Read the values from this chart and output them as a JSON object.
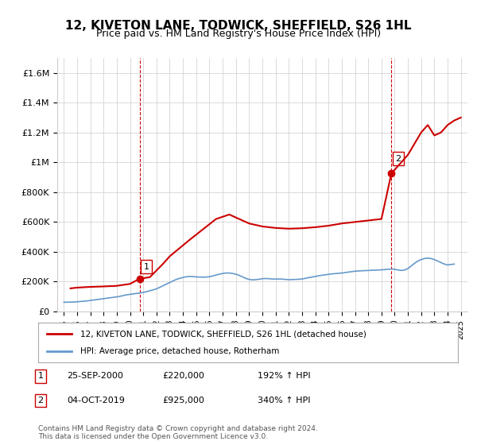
{
  "title": "12, KIVETON LANE, TODWICK, SHEFFIELD, S26 1HL",
  "subtitle": "Price paid vs. HM Land Registry's House Price Index (HPI)",
  "title_fontsize": 11,
  "subtitle_fontsize": 9,
  "bg_color": "#ffffff",
  "plot_bg_color": "#ffffff",
  "grid_color": "#cccccc",
  "house_color": "#cc0000",
  "hpi_color": "#6699cc",
  "marker_color": "#cc0000",
  "dashed_color": "#cc0000",
  "ylim": [
    0,
    1700000
  ],
  "yticks": [
    0,
    200000,
    400000,
    600000,
    800000,
    1000000,
    1200000,
    1400000,
    1600000
  ],
  "ytick_labels": [
    "£0",
    "£200K",
    "£400K",
    "£600K",
    "£800K",
    "£1M",
    "£1.2M",
    "£1.4M",
    "£1.6M"
  ],
  "xmin": 1994.5,
  "xmax": 2025.5,
  "xticks": [
    1995,
    1996,
    1997,
    1998,
    1999,
    2000,
    2001,
    2002,
    2003,
    2004,
    2005,
    2006,
    2007,
    2008,
    2009,
    2010,
    2011,
    2012,
    2013,
    2014,
    2015,
    2016,
    2017,
    2018,
    2019,
    2020,
    2021,
    2022,
    2023,
    2024,
    2025
  ],
  "sale1_x": 2000.73,
  "sale1_y": 220000,
  "sale1_label": "1",
  "sale1_date": "25-SEP-2000",
  "sale1_price": "£220,000",
  "sale1_hpi": "192% ↑ HPI",
  "sale2_x": 2019.75,
  "sale2_y": 925000,
  "sale2_label": "2",
  "sale2_date": "04-OCT-2019",
  "sale2_price": "£925,000",
  "sale2_hpi": "340% ↑ HPI",
  "legend_line1": "12, KIVETON LANE, TODWICK, SHEFFIELD, S26 1HL (detached house)",
  "legend_line2": "HPI: Average price, detached house, Rotherham",
  "footer": "Contains HM Land Registry data © Crown copyright and database right 2024.\nThis data is licensed under the Open Government Licence v3.0.",
  "hpi_data_x": [
    1995.0,
    1995.25,
    1995.5,
    1995.75,
    1996.0,
    1996.25,
    1996.5,
    1996.75,
    1997.0,
    1997.25,
    1997.5,
    1997.75,
    1998.0,
    1998.25,
    1998.5,
    1998.75,
    1999.0,
    1999.25,
    1999.5,
    1999.75,
    2000.0,
    2000.25,
    2000.5,
    2000.75,
    2001.0,
    2001.25,
    2001.5,
    2001.75,
    2002.0,
    2002.25,
    2002.5,
    2002.75,
    2003.0,
    2003.25,
    2003.5,
    2003.75,
    2004.0,
    2004.25,
    2004.5,
    2004.75,
    2005.0,
    2005.25,
    2005.5,
    2005.75,
    2006.0,
    2006.25,
    2006.5,
    2006.75,
    2007.0,
    2007.25,
    2007.5,
    2007.75,
    2008.0,
    2008.25,
    2008.5,
    2008.75,
    2009.0,
    2009.25,
    2009.5,
    2009.75,
    2010.0,
    2010.25,
    2010.5,
    2010.75,
    2011.0,
    2011.25,
    2011.5,
    2011.75,
    2012.0,
    2012.25,
    2012.5,
    2012.75,
    2013.0,
    2013.25,
    2013.5,
    2013.75,
    2014.0,
    2014.25,
    2014.5,
    2014.75,
    2015.0,
    2015.25,
    2015.5,
    2015.75,
    2016.0,
    2016.25,
    2016.5,
    2016.75,
    2017.0,
    2017.25,
    2017.5,
    2017.75,
    2018.0,
    2018.25,
    2018.5,
    2018.75,
    2019.0,
    2019.25,
    2019.5,
    2019.75,
    2020.0,
    2020.25,
    2020.5,
    2020.75,
    2021.0,
    2021.25,
    2021.5,
    2021.75,
    2022.0,
    2022.25,
    2022.5,
    2022.75,
    2023.0,
    2023.25,
    2023.5,
    2023.75,
    2024.0,
    2024.25,
    2024.5
  ],
  "hpi_data_y": [
    62000,
    62500,
    63000,
    63500,
    65000,
    67000,
    69000,
    71000,
    74000,
    77000,
    80000,
    83000,
    86000,
    89000,
    92000,
    95000,
    98000,
    102000,
    107000,
    112000,
    115000,
    118000,
    121000,
    124000,
    128000,
    133000,
    139000,
    145000,
    152000,
    162000,
    173000,
    184000,
    194000,
    205000,
    215000,
    222000,
    228000,
    233000,
    235000,
    234000,
    232000,
    231000,
    230000,
    231000,
    233000,
    238000,
    244000,
    250000,
    255000,
    258000,
    258000,
    255000,
    250000,
    242000,
    232000,
    222000,
    215000,
    212000,
    213000,
    216000,
    220000,
    221000,
    220000,
    218000,
    217000,
    218000,
    217000,
    215000,
    213000,
    214000,
    215000,
    216000,
    218000,
    222000,
    227000,
    231000,
    235000,
    239000,
    243000,
    246000,
    249000,
    252000,
    254000,
    256000,
    258000,
    261000,
    264000,
    267000,
    270000,
    272000,
    273000,
    274000,
    275000,
    276000,
    277000,
    278000,
    279000,
    281000,
    283000,
    285000,
    283000,
    278000,
    275000,
    278000,
    288000,
    305000,
    323000,
    338000,
    348000,
    355000,
    358000,
    355000,
    348000,
    338000,
    328000,
    318000,
    312000,
    315000,
    318000
  ],
  "house_data_x": [
    1995.5,
    1996.0,
    1997.0,
    1998.0,
    1999.0,
    2000.0,
    2000.73,
    2001.5,
    2002.5,
    2003.0,
    2004.5,
    2005.5,
    2006.5,
    2007.5,
    2008.0,
    2009.0,
    2010.0,
    2011.0,
    2012.0,
    2013.0,
    2014.0,
    2015.0,
    2016.0,
    2017.0,
    2018.0,
    2019.0,
    2019.75,
    2020.5,
    2021.0,
    2022.0,
    2022.5,
    2023.0,
    2023.5,
    2024.0,
    2024.5,
    2025.0
  ],
  "house_data_y": [
    155000,
    160000,
    165000,
    168000,
    172000,
    185000,
    220000,
    230000,
    320000,
    370000,
    480000,
    550000,
    620000,
    650000,
    630000,
    590000,
    570000,
    560000,
    555000,
    558000,
    565000,
    575000,
    590000,
    600000,
    610000,
    620000,
    925000,
    1000000,
    1050000,
    1200000,
    1250000,
    1180000,
    1200000,
    1250000,
    1280000,
    1300000
  ]
}
